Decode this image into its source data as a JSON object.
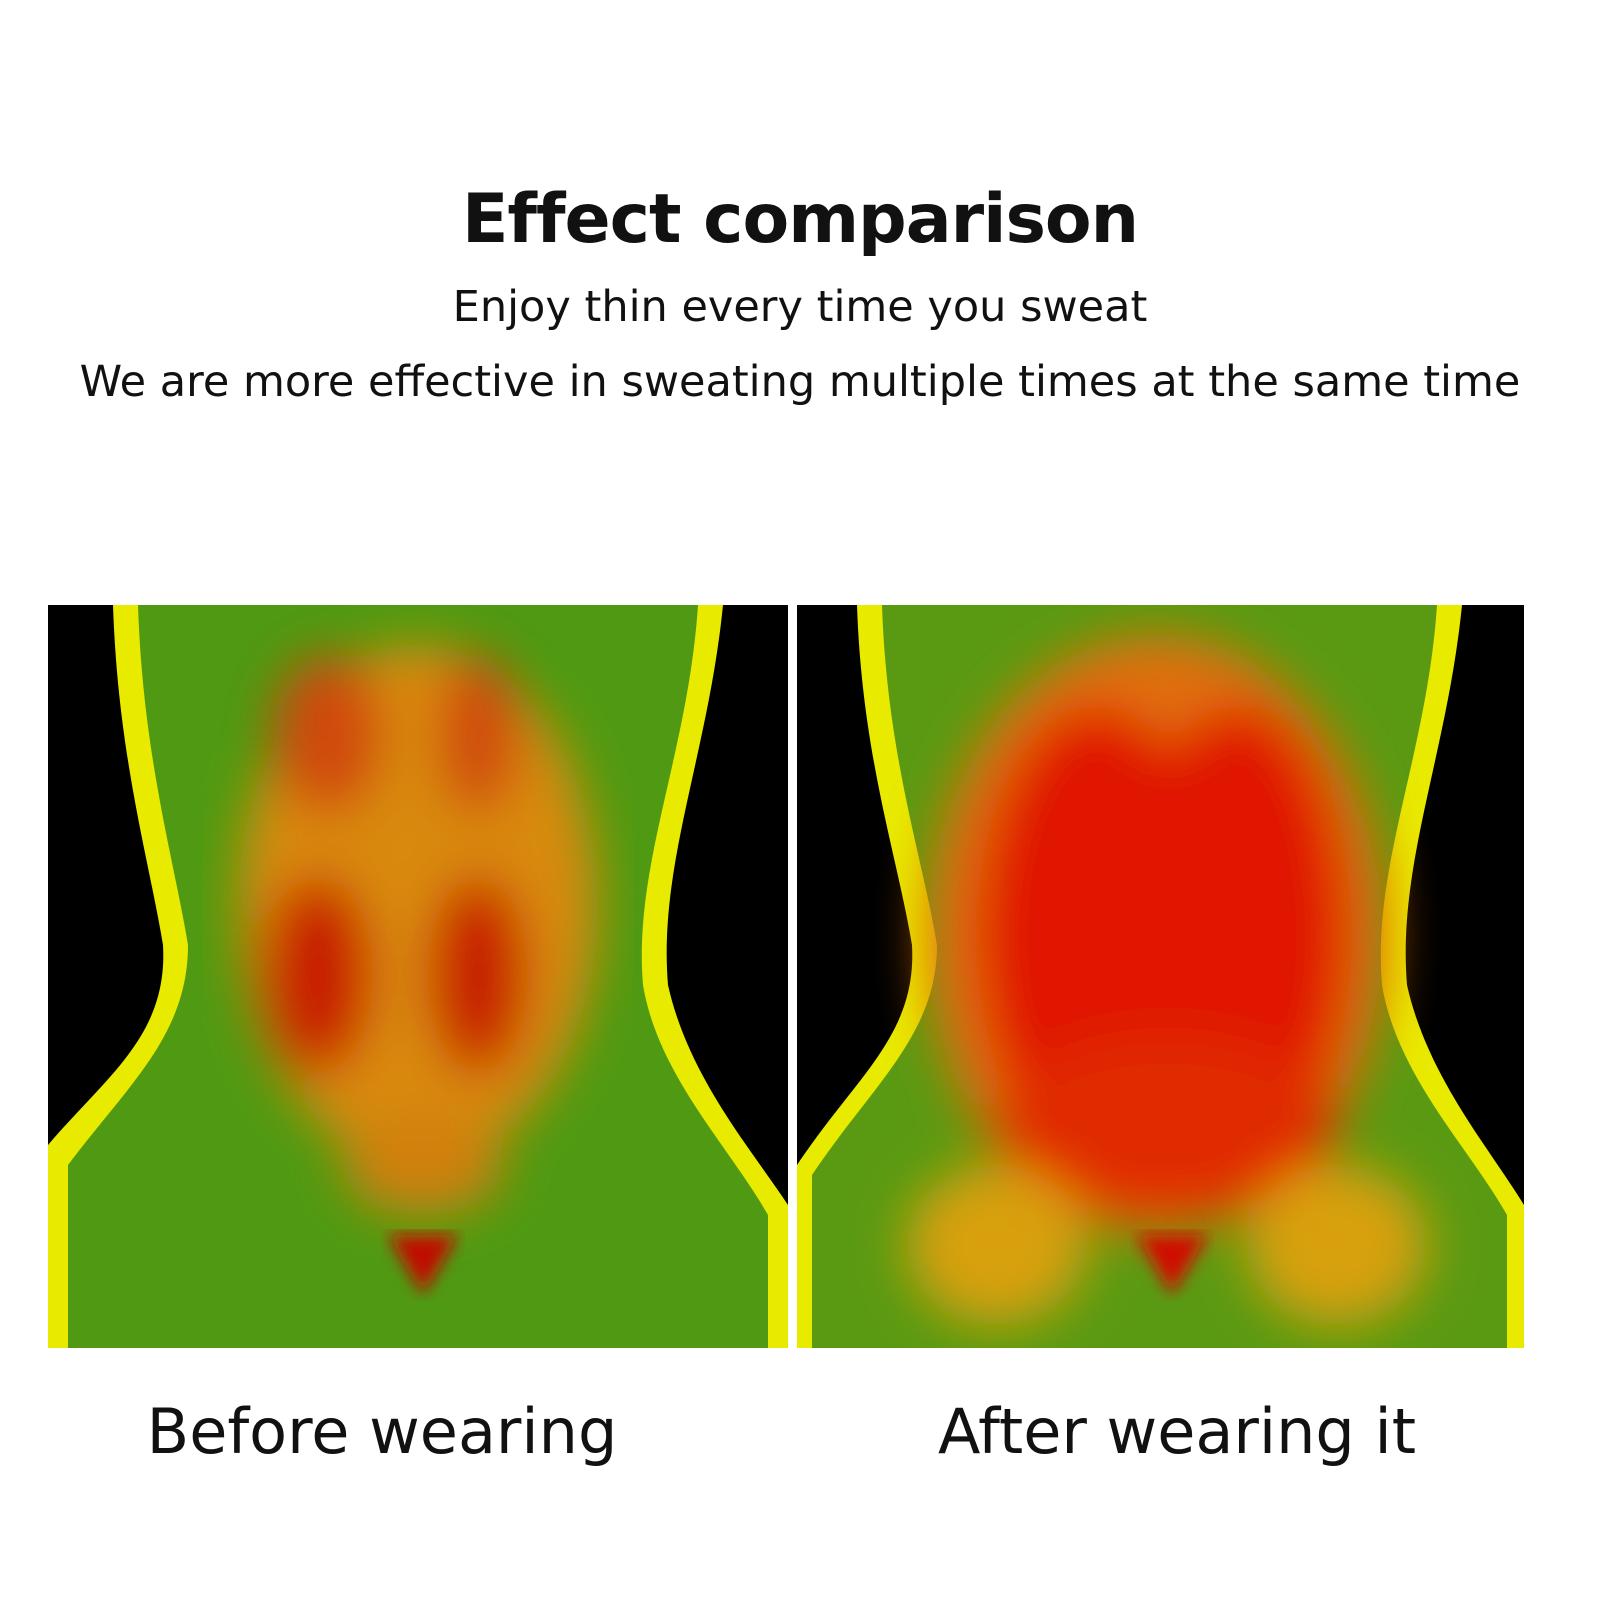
{
  "header": {
    "title": "Effect comparison",
    "subtitle": "Enjoy thin every time you sweat",
    "tagline": "We are more effective in sweating multiple times at the same time"
  },
  "comparison": {
    "before_label": "Before wearing",
    "after_label": "After wearing it",
    "colors": {
      "background": "#000000",
      "body": "#4a9a10",
      "edge": "#f0f000",
      "heat": "#e01000"
    }
  }
}
